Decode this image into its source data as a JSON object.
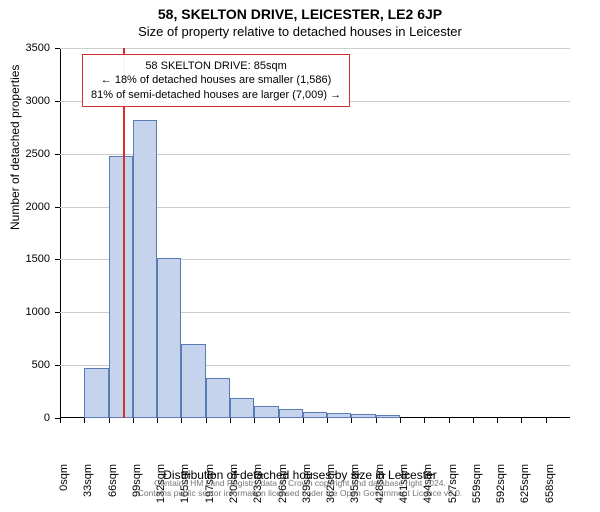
{
  "title_line1": "58, SKELTON DRIVE, LEICESTER, LE2 6JP",
  "title_line2": "Size of property relative to detached houses in Leicester",
  "ylabel": "Number of detached properties",
  "xlabel": "Distribution of detached houses by size in Leicester",
  "footer_line1": "Contains HM Land Registry data © Crown copyright and database right 2024.",
  "footer_line2": "Contains public sector information licensed under the Open Government Licence v3.0.",
  "chart": {
    "type": "histogram",
    "ylim": [
      0,
      3500
    ],
    "ytick_step": 500,
    "bar_fill": "#c5d4ec",
    "bar_border": "#5a7bb5",
    "background": "#ffffff",
    "grid_color": "#cccccc",
    "marker_color": "#d03030",
    "bin_width_sqm": 33,
    "bins": [
      {
        "start": 0,
        "count": 0
      },
      {
        "start": 33,
        "count": 470
      },
      {
        "start": 66,
        "count": 2480
      },
      {
        "start": 99,
        "count": 2820
      },
      {
        "start": 132,
        "count": 1510
      },
      {
        "start": 165,
        "count": 700
      },
      {
        "start": 197,
        "count": 380
      },
      {
        "start": 230,
        "count": 190
      },
      {
        "start": 263,
        "count": 110
      },
      {
        "start": 296,
        "count": 90
      },
      {
        "start": 329,
        "count": 60
      },
      {
        "start": 362,
        "count": 50
      },
      {
        "start": 395,
        "count": 40
      },
      {
        "start": 428,
        "count": 25
      },
      {
        "start": 461,
        "count": 0
      },
      {
        "start": 494,
        "count": 0
      },
      {
        "start": 527,
        "count": 0
      },
      {
        "start": 559,
        "count": 0
      },
      {
        "start": 592,
        "count": 0
      },
      {
        "start": 625,
        "count": 0
      },
      {
        "start": 658,
        "count": 0
      }
    ],
    "marker_value_sqm": 85
  },
  "info_box": {
    "line1": "58 SKELTON DRIVE: 85sqm",
    "line2": "← 18% of detached houses are smaller (1,586)",
    "line3": "81% of semi-detached houses are larger (7,009) →"
  }
}
